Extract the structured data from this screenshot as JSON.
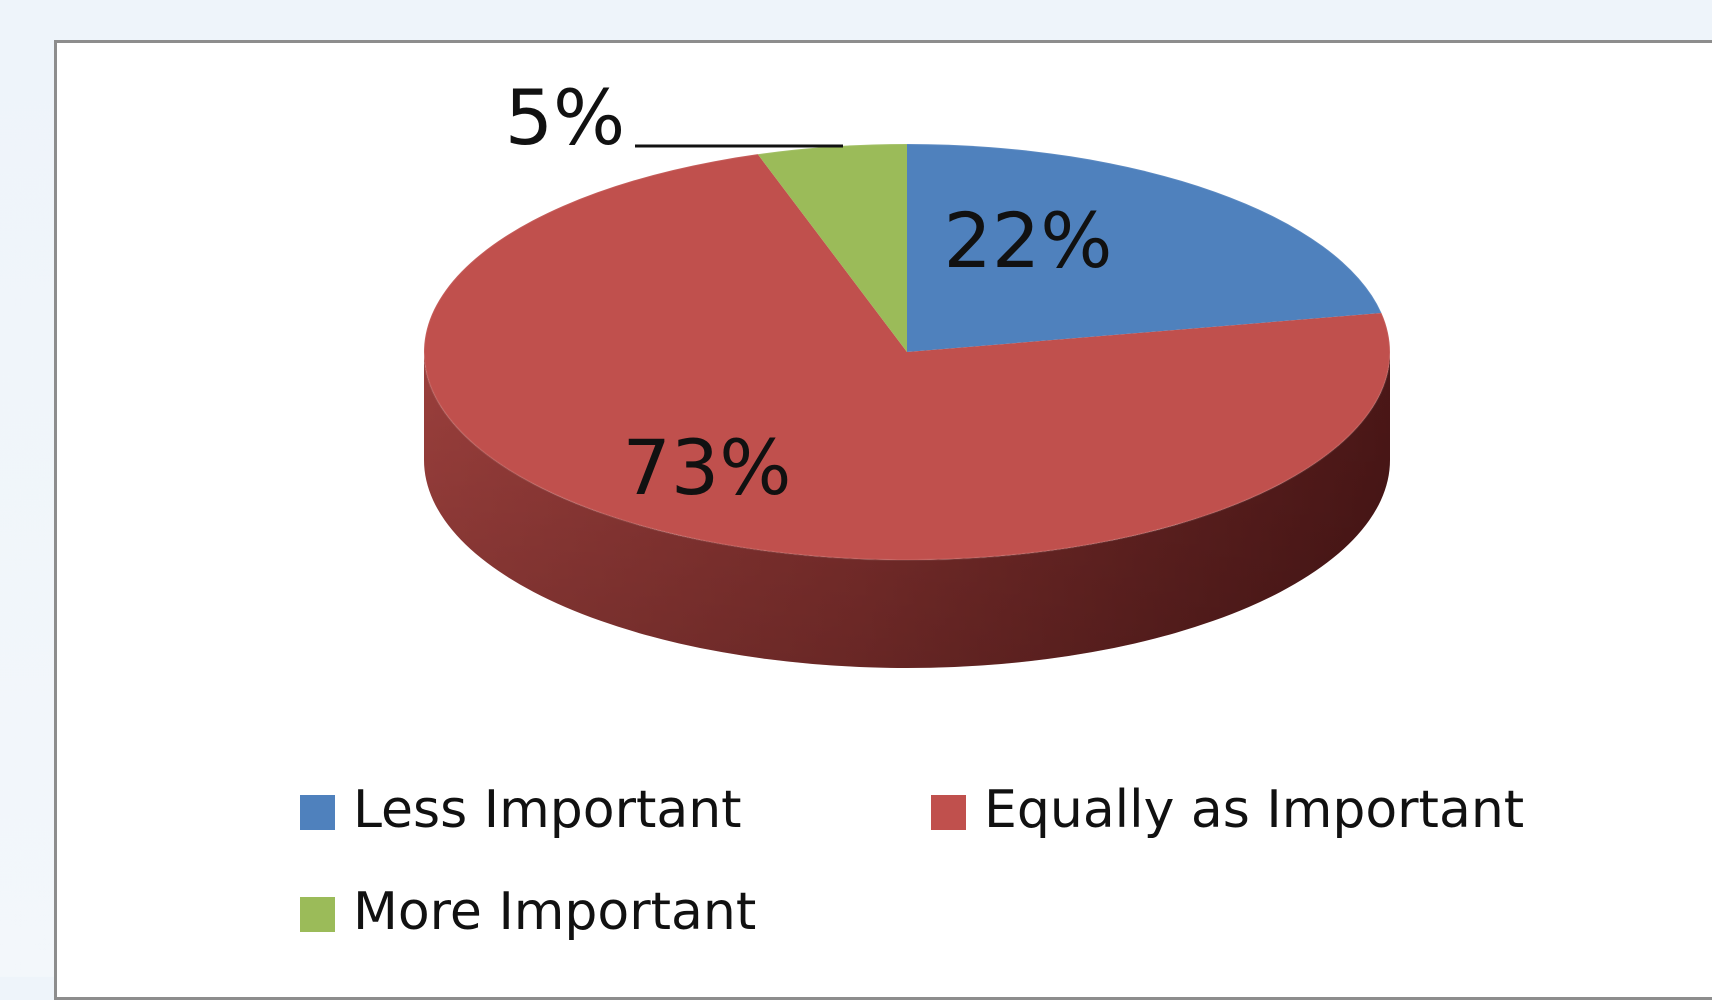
{
  "chart_data": {
    "type": "pie",
    "categories": [
      "Less Important",
      "Equally as Important",
      "More Important"
    ],
    "values": [
      22,
      73,
      5
    ],
    "labels": [
      "22%",
      "73%",
      "5%"
    ],
    "colors": [
      "#4f81bd",
      "#c0504d",
      "#9bbb59"
    ],
    "legend_position": "bottom",
    "grid": false,
    "perspective": "3d"
  }
}
